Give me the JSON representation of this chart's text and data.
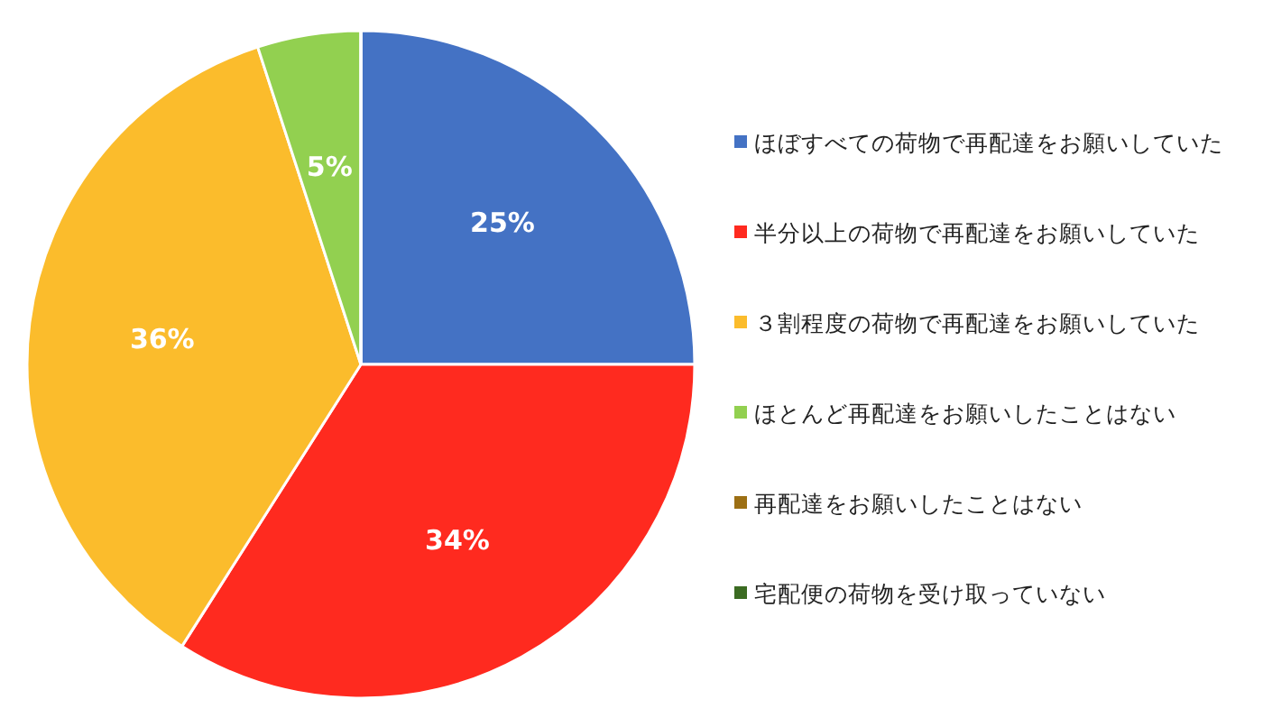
{
  "chart_data": {
    "type": "pie",
    "categories": [
      "ほぼすべての荷物で再配達をお願いしていた",
      "半分以上の荷物で再配達をお願いしていた",
      "３割程度の荷物で再配達をお願いしていた",
      "ほとんど再配達をお願いしたことはない",
      "再配達をお願いしたことはない",
      "宅配便の荷物を受け取っていない"
    ],
    "values": [
      25,
      34,
      36,
      5,
      0,
      0
    ],
    "colors": [
      "#4472c4",
      "#ff2a1f",
      "#fbbc2c",
      "#92d050",
      "#9c6f14",
      "#3b6b22"
    ],
    "value_labels": [
      "25%",
      "34%",
      "36%",
      "5%",
      null,
      null
    ],
    "legend": "right"
  }
}
